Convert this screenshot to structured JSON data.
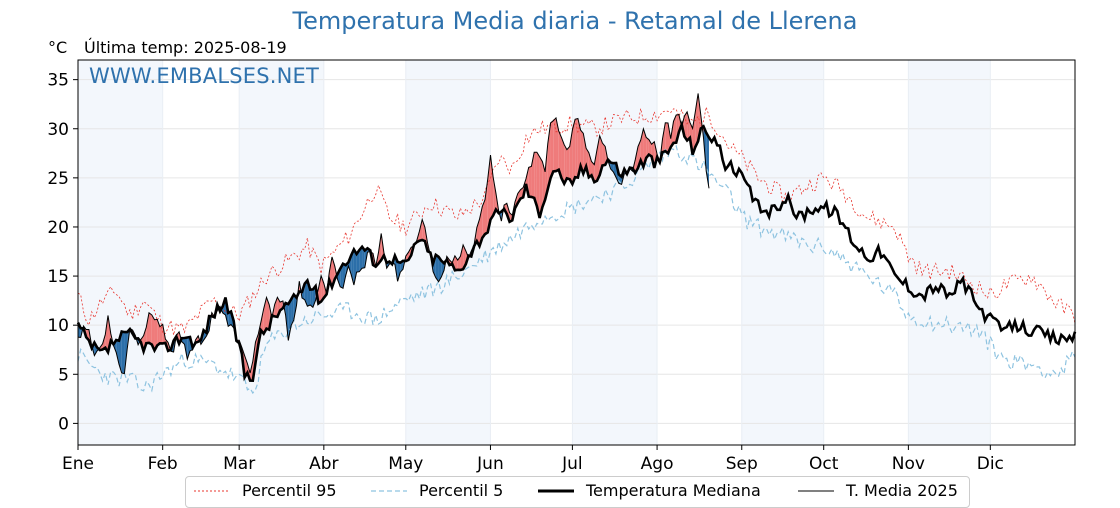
{
  "chart_data": {
    "type": "line",
    "title": "Temperatura Media diaria - Retamal de Llerena",
    "subtitle": "Última temp: 2025-08-19",
    "ylabel": "°C",
    "watermark": "WWW.EMBALSES.NET",
    "ylim": [
      -2.2,
      37
    ],
    "xlim": [
      1,
      366
    ],
    "y_ticks": [
      0,
      5,
      10,
      15,
      20,
      25,
      30,
      35
    ],
    "month_labels": [
      "Ene",
      "Feb",
      "Mar",
      "Abr",
      "May",
      "Jun",
      "Jul",
      "Ago",
      "Sep",
      "Oct",
      "Nov",
      "Dic"
    ],
    "month_starts": [
      1,
      32,
      60,
      91,
      121,
      152,
      182,
      213,
      244,
      274,
      305,
      335
    ],
    "grid": true,
    "legend_position": "bottom-center",
    "colors": {
      "p95": "#e8352e",
      "p5": "#8ec3e0",
      "median": "#000000",
      "current": "#000000",
      "above": "#ef7b7b",
      "below": "#2c6fa9",
      "band_shade": "#f3f7fc",
      "title": "#2f72ad"
    },
    "series": [
      {
        "name": "Percentil 95",
        "style": "dotted-red",
        "anchors": [
          [
            1,
            13
          ],
          [
            5,
            10.5
          ],
          [
            10,
            12.5
          ],
          [
            15,
            13.5
          ],
          [
            20,
            11
          ],
          [
            25,
            12.5
          ],
          [
            32,
            10
          ],
          [
            40,
            9.5
          ],
          [
            50,
            12.5
          ],
          [
            60,
            11
          ],
          [
            65,
            13
          ],
          [
            70,
            15
          ],
          [
            80,
            17
          ],
          [
            85,
            18
          ],
          [
            90,
            16
          ],
          [
            95,
            17.5
          ],
          [
            100,
            19
          ],
          [
            110,
            24
          ],
          [
            115,
            21
          ],
          [
            121,
            20
          ],
          [
            130,
            22.5
          ],
          [
            140,
            21
          ],
          [
            150,
            23
          ],
          [
            155,
            27
          ],
          [
            160,
            26
          ],
          [
            165,
            29
          ],
          [
            170,
            30
          ],
          [
            182,
            30.5
          ],
          [
            190,
            30
          ],
          [
            200,
            31
          ],
          [
            213,
            31.5
          ],
          [
            218,
            32
          ],
          [
            225,
            30.5
          ],
          [
            232,
            31.5
          ],
          [
            240,
            28
          ],
          [
            244,
            27
          ],
          [
            250,
            25
          ],
          [
            260,
            23
          ],
          [
            270,
            24.5
          ],
          [
            274,
            25
          ],
          [
            280,
            24
          ],
          [
            290,
            21
          ],
          [
            300,
            20
          ],
          [
            305,
            17
          ],
          [
            310,
            15.5
          ],
          [
            320,
            15.5
          ],
          [
            330,
            14
          ],
          [
            335,
            13
          ],
          [
            340,
            14
          ],
          [
            350,
            15
          ],
          [
            360,
            12
          ],
          [
            366,
            11
          ]
        ],
        "noise": 0.9
      },
      {
        "name": "Percentil 5",
        "style": "dashed-lightblue",
        "anchors": [
          [
            1,
            7
          ],
          [
            5,
            6
          ],
          [
            10,
            5
          ],
          [
            15,
            4.5
          ],
          [
            20,
            4.5
          ],
          [
            25,
            3.5
          ],
          [
            32,
            5
          ],
          [
            40,
            6.5
          ],
          [
            50,
            6
          ],
          [
            60,
            4.5
          ],
          [
            65,
            3
          ],
          [
            70,
            8
          ],
          [
            80,
            10
          ],
          [
            90,
            11
          ],
          [
            100,
            11.5
          ],
          [
            110,
            10.5
          ],
          [
            120,
            12.5
          ],
          [
            130,
            13.5
          ],
          [
            140,
            15
          ],
          [
            150,
            17
          ],
          [
            160,
            19
          ],
          [
            170,
            21
          ],
          [
            182,
            22
          ],
          [
            190,
            23
          ],
          [
            200,
            24
          ],
          [
            213,
            27
          ],
          [
            220,
            28
          ],
          [
            230,
            26
          ],
          [
            240,
            23
          ],
          [
            244,
            21
          ],
          [
            250,
            20
          ],
          [
            260,
            19
          ],
          [
            270,
            18
          ],
          [
            274,
            18
          ],
          [
            280,
            17
          ],
          [
            290,
            15
          ],
          [
            300,
            13
          ],
          [
            305,
            11
          ],
          [
            310,
            10.5
          ],
          [
            320,
            10
          ],
          [
            330,
            9.5
          ],
          [
            335,
            8
          ],
          [
            340,
            6.5
          ],
          [
            350,
            6
          ],
          [
            360,
            5
          ],
          [
            366,
            7
          ]
        ],
        "noise": 0.9
      },
      {
        "name": "Temperatura Mediana",
        "style": "thick-black",
        "anchors": [
          [
            1,
            10
          ],
          [
            5,
            8
          ],
          [
            10,
            7
          ],
          [
            15,
            8.5
          ],
          [
            20,
            9
          ],
          [
            25,
            8
          ],
          [
            32,
            7.5
          ],
          [
            40,
            9
          ],
          [
            45,
            8
          ],
          [
            50,
            11
          ],
          [
            55,
            12.5
          ],
          [
            60,
            8
          ],
          [
            62,
            5
          ],
          [
            65,
            5
          ],
          [
            68,
            9
          ],
          [
            75,
            11.5
          ],
          [
            80,
            12.5
          ],
          [
            85,
            14.5
          ],
          [
            90,
            12.5
          ],
          [
            95,
            15
          ],
          [
            100,
            17
          ],
          [
            105,
            18
          ],
          [
            110,
            16.5
          ],
          [
            115,
            17
          ],
          [
            121,
            16
          ],
          [
            126,
            19
          ],
          [
            130,
            17
          ],
          [
            135,
            16.5
          ],
          [
            140,
            15.5
          ],
          [
            145,
            17.5
          ],
          [
            150,
            19.5
          ],
          [
            155,
            21.5
          ],
          [
            160,
            21
          ],
          [
            165,
            24
          ],
          [
            170,
            21.5
          ],
          [
            175,
            26
          ],
          [
            182,
            24
          ],
          [
            185,
            26
          ],
          [
            190,
            25
          ],
          [
            195,
            27
          ],
          [
            200,
            25.5
          ],
          [
            205,
            26
          ],
          [
            210,
            27
          ],
          [
            213,
            26.5
          ],
          [
            218,
            28
          ],
          [
            222,
            30
          ],
          [
            226,
            28
          ],
          [
            230,
            30
          ],
          [
            234,
            29
          ],
          [
            238,
            26.5
          ],
          [
            244,
            25
          ],
          [
            250,
            22
          ],
          [
            255,
            21.5
          ],
          [
            260,
            23
          ],
          [
            265,
            21
          ],
          [
            270,
            22
          ],
          [
            274,
            22
          ],
          [
            278,
            21.5
          ],
          [
            282,
            20
          ],
          [
            285,
            18.5
          ],
          [
            290,
            17
          ],
          [
            295,
            17.5
          ],
          [
            300,
            15
          ],
          [
            305,
            14
          ],
          [
            310,
            13
          ],
          [
            315,
            14
          ],
          [
            320,
            13
          ],
          [
            325,
            14.5
          ],
          [
            330,
            12
          ],
          [
            335,
            10.5
          ],
          [
            340,
            9.5
          ],
          [
            345,
            10
          ],
          [
            350,
            9.5
          ],
          [
            355,
            9
          ],
          [
            360,
            8.5
          ],
          [
            366,
            9
          ]
        ],
        "noise": 0.7
      },
      {
        "name": "T. Media 2025",
        "style": "thin-black",
        "anchors": [
          [
            1,
            9
          ],
          [
            4,
            10
          ],
          [
            7,
            7
          ],
          [
            10,
            8
          ],
          [
            12,
            11
          ],
          [
            15,
            7
          ],
          [
            18,
            5
          ],
          [
            20,
            10
          ],
          [
            24,
            8
          ],
          [
            27,
            11.5
          ],
          [
            30,
            10
          ],
          [
            32,
            9.5
          ],
          [
            35,
            7
          ],
          [
            38,
            9.5
          ],
          [
            41,
            7
          ],
          [
            44,
            8.5
          ],
          [
            47,
            8
          ],
          [
            50,
            11
          ],
          [
            53,
            12
          ],
          [
            56,
            10
          ],
          [
            59,
            9
          ],
          [
            62,
            6.5
          ],
          [
            64,
            5.5
          ],
          [
            66,
            8
          ],
          [
            68,
            10.5
          ],
          [
            70,
            12.5
          ],
          [
            72,
            10.5
          ],
          [
            74,
            13
          ],
          [
            76,
            12
          ],
          [
            78,
            9
          ],
          [
            80,
            11
          ],
          [
            82,
            14
          ],
          [
            84,
            12
          ],
          [
            86,
            11.5
          ],
          [
            88,
            13
          ],
          [
            90,
            14.5
          ],
          [
            92,
            13.5
          ],
          [
            94,
            16.5
          ],
          [
            96,
            15
          ],
          [
            98,
            14
          ],
          [
            100,
            16
          ],
          [
            102,
            14.5
          ],
          [
            104,
            15.5
          ],
          [
            106,
            16
          ],
          [
            108,
            18
          ],
          [
            110,
            16.5
          ],
          [
            112,
            19
          ],
          [
            114,
            16
          ],
          [
            116,
            16.5
          ],
          [
            118,
            15
          ],
          [
            121,
            16.5
          ],
          [
            124,
            18
          ],
          [
            127,
            21
          ],
          [
            130,
            17
          ],
          [
            133,
            14
          ],
          [
            136,
            17
          ],
          [
            139,
            16.5
          ],
          [
            142,
            18
          ],
          [
            145,
            17
          ],
          [
            148,
            21
          ],
          [
            150,
            23
          ],
          [
            152,
            27.5
          ],
          [
            154,
            23
          ],
          [
            156,
            21
          ],
          [
            158,
            22.5
          ],
          [
            160,
            21
          ],
          [
            162,
            24
          ],
          [
            164,
            23.5
          ],
          [
            166,
            25.5
          ],
          [
            168,
            28
          ],
          [
            170,
            27.5
          ],
          [
            172,
            26
          ],
          [
            174,
            30
          ],
          [
            176,
            31
          ],
          [
            178,
            29
          ],
          [
            180,
            27.5
          ],
          [
            182,
            30
          ],
          [
            184,
            31
          ],
          [
            186,
            29
          ],
          [
            188,
            27
          ],
          [
            190,
            26.5
          ],
          [
            192,
            29
          ],
          [
            194,
            28
          ],
          [
            196,
            26
          ],
          [
            198,
            25
          ],
          [
            200,
            24
          ],
          [
            202,
            26
          ],
          [
            204,
            25.5
          ],
          [
            206,
            28
          ],
          [
            208,
            30
          ],
          [
            210,
            29
          ],
          [
            212,
            28.5
          ],
          [
            214,
            27
          ],
          [
            216,
            31
          ],
          [
            218,
            29.5
          ],
          [
            220,
            31.5
          ],
          [
            222,
            30.5
          ],
          [
            224,
            32
          ],
          [
            226,
            30
          ],
          [
            228,
            33
          ],
          [
            230,
            29
          ],
          [
            232,
            23.5
          ]
        ],
        "noise": 0.6
      }
    ]
  },
  "legend": [
    {
      "label": "Percentil 95"
    },
    {
      "label": "Percentil 5"
    },
    {
      "label": "Temperatura Mediana"
    },
    {
      "label": "T. Media 2025"
    }
  ]
}
